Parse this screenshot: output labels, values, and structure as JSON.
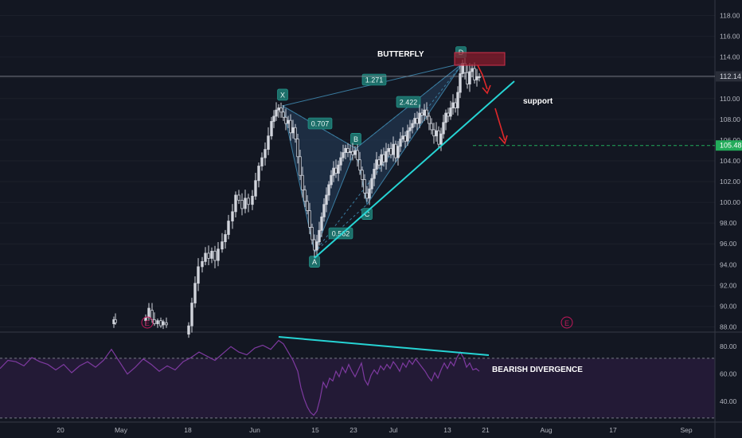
{
  "chart_data": [
    {
      "type": "candlestick",
      "panel": "price",
      "ylim": [
        87.5,
        119.5
      ],
      "y_ticks": [
        "118.00",
        "116.00",
        "114.00",
        "112.00",
        "110.00",
        "108.00",
        "106.00",
        "104.00",
        "102.00",
        "100.00",
        "98.00",
        "96.00",
        "94.00",
        "92.00",
        "90.00",
        "88.00"
      ],
      "x_ticks": [
        "20",
        "May",
        "18",
        "Jun",
        "15",
        "23",
        "Jul",
        "13",
        "21",
        "Aug",
        "17",
        "Sep"
      ],
      "candles": [
        {
          "x": 143,
          "o": 88.3,
          "h": 89.0,
          "l": 87.9,
          "c": 88.7
        },
        {
          "x": 145,
          "o": 88.7,
          "h": 89.3,
          "l": 88.2,
          "c": 88.4
        },
        {
          "x": 183,
          "o": 88.6,
          "h": 89.2,
          "l": 88.1,
          "c": 88.9
        },
        {
          "x": 187,
          "o": 88.9,
          "h": 90.3,
          "l": 88.6,
          "c": 89.8
        },
        {
          "x": 191,
          "o": 89.6,
          "h": 90.3,
          "l": 88.4,
          "c": 88.7
        },
        {
          "x": 194,
          "o": 88.7,
          "h": 89.4,
          "l": 88.1,
          "c": 88.3
        },
        {
          "x": 198,
          "o": 88.3,
          "h": 88.8,
          "l": 87.9,
          "c": 88.6
        },
        {
          "x": 202,
          "o": 88.6,
          "h": 88.9,
          "l": 87.9,
          "c": 88.1
        },
        {
          "x": 205,
          "o": 88.2,
          "h": 88.7,
          "l": 87.8,
          "c": 88.5
        },
        {
          "x": 209,
          "o": 88.4,
          "h": 88.9,
          "l": 87.9,
          "c": 88.2
        }
      ],
      "path_closes": [
        [
          237,
          88.1
        ],
        [
          241,
          90.3
        ],
        [
          245,
          92.2
        ],
        [
          249,
          93.8
        ],
        [
          254,
          94.3
        ],
        [
          258,
          95.1
        ],
        [
          262,
          94.6
        ],
        [
          266,
          95.3
        ],
        [
          270,
          94.4
        ],
        [
          274,
          95.5
        ],
        [
          279,
          96.2
        ],
        [
          283,
          96.9
        ],
        [
          287,
          98.2
        ],
        [
          292,
          99.1
        ],
        [
          296,
          100.7
        ],
        [
          300,
          100.2
        ],
        [
          304,
          99.4
        ],
        [
          308,
          100.4
        ],
        [
          312,
          99.8
        ],
        [
          317,
          100.6
        ],
        [
          321,
          102.1
        ],
        [
          325,
          103.5
        ],
        [
          329,
          104.3
        ],
        [
          333,
          105.1
        ],
        [
          337,
          106.4
        ],
        [
          341,
          107.8
        ],
        [
          344,
          108.3
        ],
        [
          347,
          108.9
        ],
        [
          350,
          109.1
        ],
        [
          353,
          108.7
        ],
        [
          356,
          108.2
        ],
        [
          359,
          107.6
        ],
        [
          362,
          107.9
        ],
        [
          365,
          106.7
        ],
        [
          368,
          107.2
        ],
        [
          371,
          106.1
        ],
        [
          374,
          104.4
        ],
        [
          377,
          102.6
        ],
        [
          380,
          101.2
        ],
        [
          383,
          100.1
        ],
        [
          386,
          99.2
        ],
        [
          389,
          97.6
        ],
        [
          392,
          96.4
        ],
        [
          395,
          95.4
        ],
        [
          398,
          96.2
        ],
        [
          401,
          97.3
        ],
        [
          404,
          98.6
        ],
        [
          407,
          99.8
        ],
        [
          410,
          100.7
        ],
        [
          413,
          101.7
        ],
        [
          416,
          102.6
        ],
        [
          419,
          103.3
        ],
        [
          422,
          102.8
        ],
        [
          425,
          103.6
        ],
        [
          428,
          104.3
        ],
        [
          431,
          104.8
        ],
        [
          434,
          105.2
        ],
        [
          437,
          104.8
        ],
        [
          440,
          104.9
        ],
        [
          443,
          104.6
        ],
        [
          446,
          105.0
        ],
        [
          449,
          104.1
        ],
        [
          452,
          103.1
        ],
        [
          455,
          102.2
        ],
        [
          458,
          100.9
        ],
        [
          461,
          100.4
        ],
        [
          464,
          101.3
        ],
        [
          467,
          102.3
        ],
        [
          470,
          103.2
        ],
        [
          473,
          104.1
        ],
        [
          476,
          103.6
        ],
        [
          479,
          104.6
        ],
        [
          482,
          103.9
        ],
        [
          485,
          104.9
        ],
        [
          488,
          105.2
        ],
        [
          491,
          104.6
        ],
        [
          494,
          105.6
        ],
        [
          497,
          104.3
        ],
        [
          500,
          105.4
        ],
        [
          503,
          106.1
        ],
        [
          506,
          106.4
        ],
        [
          509,
          105.9
        ],
        [
          512,
          106.9
        ],
        [
          515,
          107.2
        ],
        [
          518,
          107.6
        ],
        [
          521,
          108.1
        ],
        [
          524,
          107.6
        ],
        [
          527,
          108.6
        ],
        [
          530,
          108.4
        ],
        [
          533,
          108.9
        ],
        [
          536,
          108.3
        ],
        [
          539,
          107.6
        ],
        [
          542,
          107.0
        ],
        [
          545,
          106.4
        ],
        [
          548,
          106.9
        ],
        [
          551,
          105.6
        ],
        [
          554,
          106.6
        ],
        [
          557,
          107.7
        ],
        [
          560,
          108.6
        ],
        [
          563,
          108.3
        ],
        [
          566,
          109.1
        ],
        [
          569,
          109.6
        ],
        [
          572,
          109.1
        ],
        [
          575,
          110.6
        ],
        [
          578,
          112.4
        ],
        [
          581,
          113.4
        ],
        [
          584,
          112.5
        ],
        [
          587,
          111.4
        ],
        [
          590,
          112.6
        ],
        [
          593,
          112.9
        ],
        [
          596,
          111.8
        ],
        [
          599,
          112.1
        ],
        [
          602,
          112.1
        ]
      ],
      "last_price": "112.14",
      "level_label": "105.48",
      "watermark_E": "E"
    },
    {
      "type": "line",
      "panel": "oscillator",
      "ylim": [
        25,
        90
      ],
      "y_ticks": [
        "80.00",
        "60.00",
        "40.00"
      ],
      "band": [
        28,
        71.5
      ],
      "values": [
        [
          0,
          64
        ],
        [
          10,
          70
        ],
        [
          20,
          69
        ],
        [
          30,
          66
        ],
        [
          40,
          72
        ],
        [
          50,
          69
        ],
        [
          60,
          67
        ],
        [
          70,
          63
        ],
        [
          80,
          67
        ],
        [
          90,
          61
        ],
        [
          100,
          66
        ],
        [
          110,
          69
        ],
        [
          120,
          65
        ],
        [
          130,
          70
        ],
        [
          140,
          78
        ],
        [
          150,
          69
        ],
        [
          160,
          60
        ],
        [
          170,
          65
        ],
        [
          180,
          71
        ],
        [
          190,
          67
        ],
        [
          200,
          62
        ],
        [
          210,
          66
        ],
        [
          220,
          63
        ],
        [
          230,
          69
        ],
        [
          240,
          72
        ],
        [
          250,
          76
        ],
        [
          260,
          73
        ],
        [
          270,
          70
        ],
        [
          280,
          75
        ],
        [
          290,
          80
        ],
        [
          300,
          76
        ],
        [
          310,
          74
        ],
        [
          320,
          79
        ],
        [
          330,
          81
        ],
        [
          340,
          78
        ],
        [
          350,
          84.5
        ],
        [
          356,
          82
        ],
        [
          362,
          76
        ],
        [
          368,
          70
        ],
        [
          374,
          62
        ],
        [
          378,
          50
        ],
        [
          382,
          42
        ],
        [
          386,
          36
        ],
        [
          390,
          32
        ],
        [
          394,
          30
        ],
        [
          398,
          33
        ],
        [
          402,
          42
        ],
        [
          406,
          54
        ],
        [
          410,
          50
        ],
        [
          414,
          57
        ],
        [
          418,
          55
        ],
        [
          422,
          62
        ],
        [
          426,
          58
        ],
        [
          430,
          65
        ],
        [
          434,
          61
        ],
        [
          438,
          67
        ],
        [
          442,
          62
        ],
        [
          446,
          58
        ],
        [
          450,
          63
        ],
        [
          454,
          68
        ],
        [
          458,
          56
        ],
        [
          462,
          52
        ],
        [
          466,
          59
        ],
        [
          470,
          63
        ],
        [
          474,
          60
        ],
        [
          478,
          66
        ],
        [
          482,
          63
        ],
        [
          486,
          67
        ],
        [
          490,
          64
        ],
        [
          494,
          69
        ],
        [
          498,
          66
        ],
        [
          502,
          62
        ],
        [
          506,
          68
        ],
        [
          510,
          65
        ],
        [
          514,
          70
        ],
        [
          518,
          67
        ],
        [
          522,
          71
        ],
        [
          526,
          68
        ],
        [
          530,
          65
        ],
        [
          534,
          62
        ],
        [
          538,
          58
        ],
        [
          542,
          55
        ],
        [
          546,
          61
        ],
        [
          550,
          57
        ],
        [
          554,
          63
        ],
        [
          558,
          68
        ],
        [
          562,
          64
        ],
        [
          566,
          69
        ],
        [
          570,
          66
        ],
        [
          574,
          72
        ],
        [
          578,
          76
        ],
        [
          582,
          72
        ],
        [
          586,
          65
        ],
        [
          590,
          68
        ],
        [
          594,
          63
        ],
        [
          598,
          64
        ],
        [
          602,
          62
        ]
      ]
    }
  ],
  "pattern": {
    "points": [
      {
        "label": "X",
        "x": 355,
        "y": 109.3
      },
      {
        "label": "A",
        "x": 395,
        "y": 95.2
      },
      {
        "label": "B",
        "x": 447,
        "y": 105.2
      },
      {
        "label": "C",
        "x": 461,
        "y": 99.8
      },
      {
        "label": "D",
        "x": 581,
        "y": 113.4
      }
    ],
    "ratios": [
      "1.271",
      "0.707",
      "2.422",
      "0.562"
    ],
    "title": "BUTTERFLY"
  },
  "annotations": {
    "support": "support",
    "divergence": "BEARISH DIVERGENCE",
    "earnings": "E"
  },
  "colors": {
    "background": "#131722",
    "candle": "#d1d4dc",
    "pattern_fill": "#2a4a6b",
    "pattern_label": "#26a69a",
    "trendline": "#26d4d4",
    "arrow": "#e0282a",
    "zone": "#8a1c2c",
    "price_tag": "#2a2e39",
    "level_tag": "#22ab5a",
    "rsi_line": "#7e3aa0",
    "rsi_band": "#2a1a3e"
  }
}
